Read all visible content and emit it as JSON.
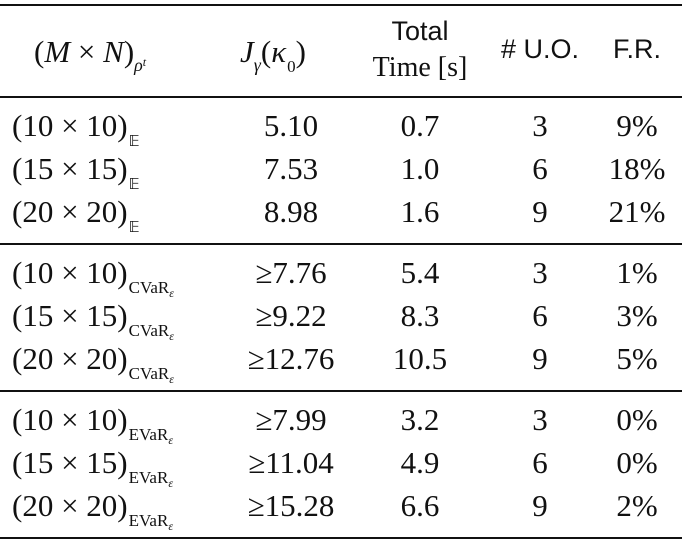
{
  "table": {
    "headers": {
      "col1": {
        "open": "(",
        "M": "M",
        "times": " × ",
        "N": "N",
        "close": ")",
        "sub_rho": "ρ",
        "sub_t": "t"
      },
      "col2": {
        "J": "J",
        "gamma": "γ",
        "open": "(",
        "kappa": "κ",
        "zero": "0",
        "close": ")"
      },
      "col3_line1": "Total",
      "col3_line2": "Time [s]",
      "col4": "# U.O.",
      "col5": "F.R."
    },
    "rows": [
      {
        "size": "(10 × 10)",
        "risk": "𝔼",
        "risk_sub": "",
        "j": "5.10",
        "time": "0.7",
        "uo": "3",
        "fr": "9%"
      },
      {
        "size": "(15 × 15)",
        "risk": "𝔼",
        "risk_sub": "",
        "j": "7.53",
        "time": "1.0",
        "uo": "6",
        "fr": "18%"
      },
      {
        "size": "(20 × 20)",
        "risk": "𝔼",
        "risk_sub": "",
        "j": "8.98",
        "time": "1.6",
        "uo": "9",
        "fr": "21%"
      },
      {
        "size": "(10 × 10)",
        "risk": "CVaR",
        "risk_sub": "ε",
        "j": "≥7.76",
        "time": "5.4",
        "uo": "3",
        "fr": "1%"
      },
      {
        "size": "(15 × 15)",
        "risk": "CVaR",
        "risk_sub": "ε",
        "j": "≥9.22",
        "time": "8.3",
        "uo": "6",
        "fr": "3%"
      },
      {
        "size": "(20 × 20)",
        "risk": "CVaR",
        "risk_sub": "ε",
        "j": "≥12.76",
        "time": "10.5",
        "uo": "9",
        "fr": "5%"
      },
      {
        "size": "(10 × 10)",
        "risk": "EVaR",
        "risk_sub": "ε",
        "j": "≥7.99",
        "time": "3.2",
        "uo": "3",
        "fr": "0%"
      },
      {
        "size": "(15 × 15)",
        "risk": "EVaR",
        "risk_sub": "ε",
        "j": "≥11.04",
        "time": "4.9",
        "uo": "6",
        "fr": "0%"
      },
      {
        "size": "(20 × 20)",
        "risk": "EVaR",
        "risk_sub": "ε",
        "j": "≥15.28",
        "time": "6.6",
        "uo": "9",
        "fr": "2%"
      }
    ]
  }
}
